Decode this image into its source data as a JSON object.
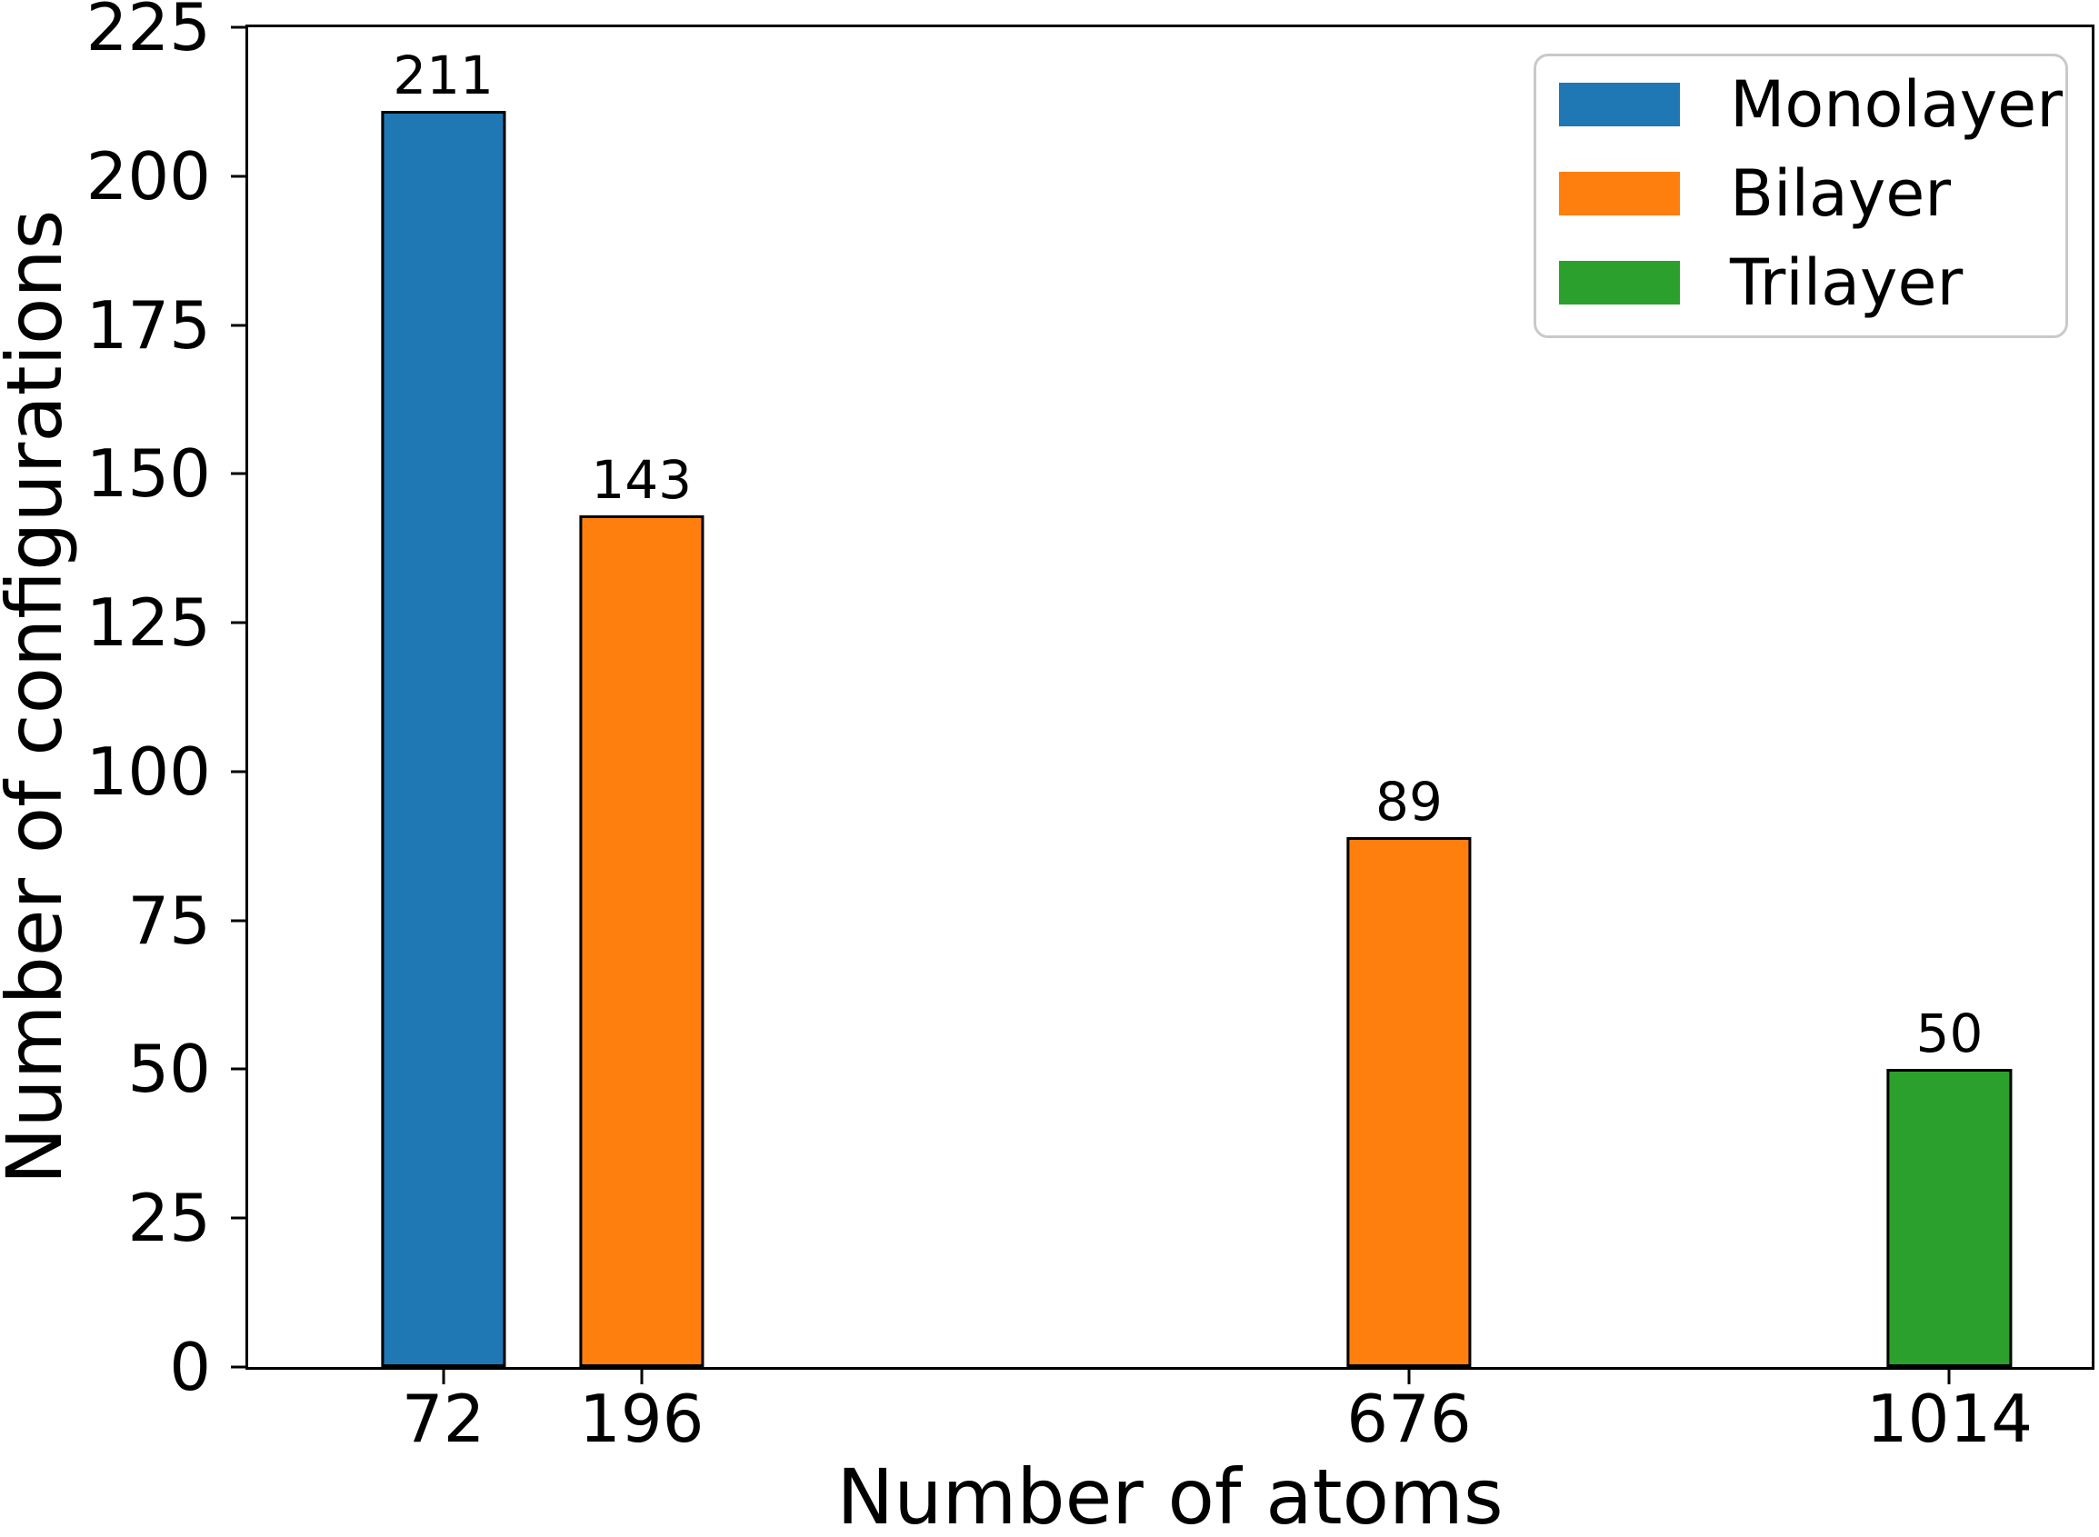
{
  "figure": {
    "background": "#ffffff",
    "text_color": "#000000"
  },
  "chart_data": {
    "type": "bar",
    "title": "",
    "xlabel": "Number of atoms",
    "ylabel": "Number of configurations",
    "xlim": [
      -50,
      1103
    ],
    "ylim": [
      0,
      225
    ],
    "grid": false,
    "bar_width_x_units": 78,
    "bar_edge_color": "#000000",
    "x_ticks": [
      "72",
      "196",
      "676",
      "1014"
    ],
    "x_tick_values": [
      72,
      196,
      676,
      1014
    ],
    "y_ticks": [
      "0",
      "25",
      "50",
      "75",
      "100",
      "125",
      "150",
      "175",
      "200",
      "225"
    ],
    "y_tick_values": [
      0,
      25,
      50,
      75,
      100,
      125,
      150,
      175,
      200,
      225
    ],
    "bars": [
      {
        "x": 72,
        "value": 211,
        "label": "211",
        "series": "Monolayer",
        "color": "#1f77b4"
      },
      {
        "x": 196,
        "value": 143,
        "label": "143",
        "series": "Bilayer",
        "color": "#ff7f0e"
      },
      {
        "x": 676,
        "value": 89,
        "label": "89",
        "series": "Bilayer",
        "color": "#ff7f0e"
      },
      {
        "x": 1014,
        "value": 50,
        "label": "50",
        "series": "Trilayer",
        "color": "#2ca02c"
      }
    ],
    "legend": {
      "position": "upper-right",
      "entries": [
        {
          "label": "Monolayer",
          "color": "#1f77b4"
        },
        {
          "label": "Bilayer",
          "color": "#ff7f0e"
        },
        {
          "label": "Trilayer",
          "color": "#2ca02c"
        }
      ]
    }
  }
}
